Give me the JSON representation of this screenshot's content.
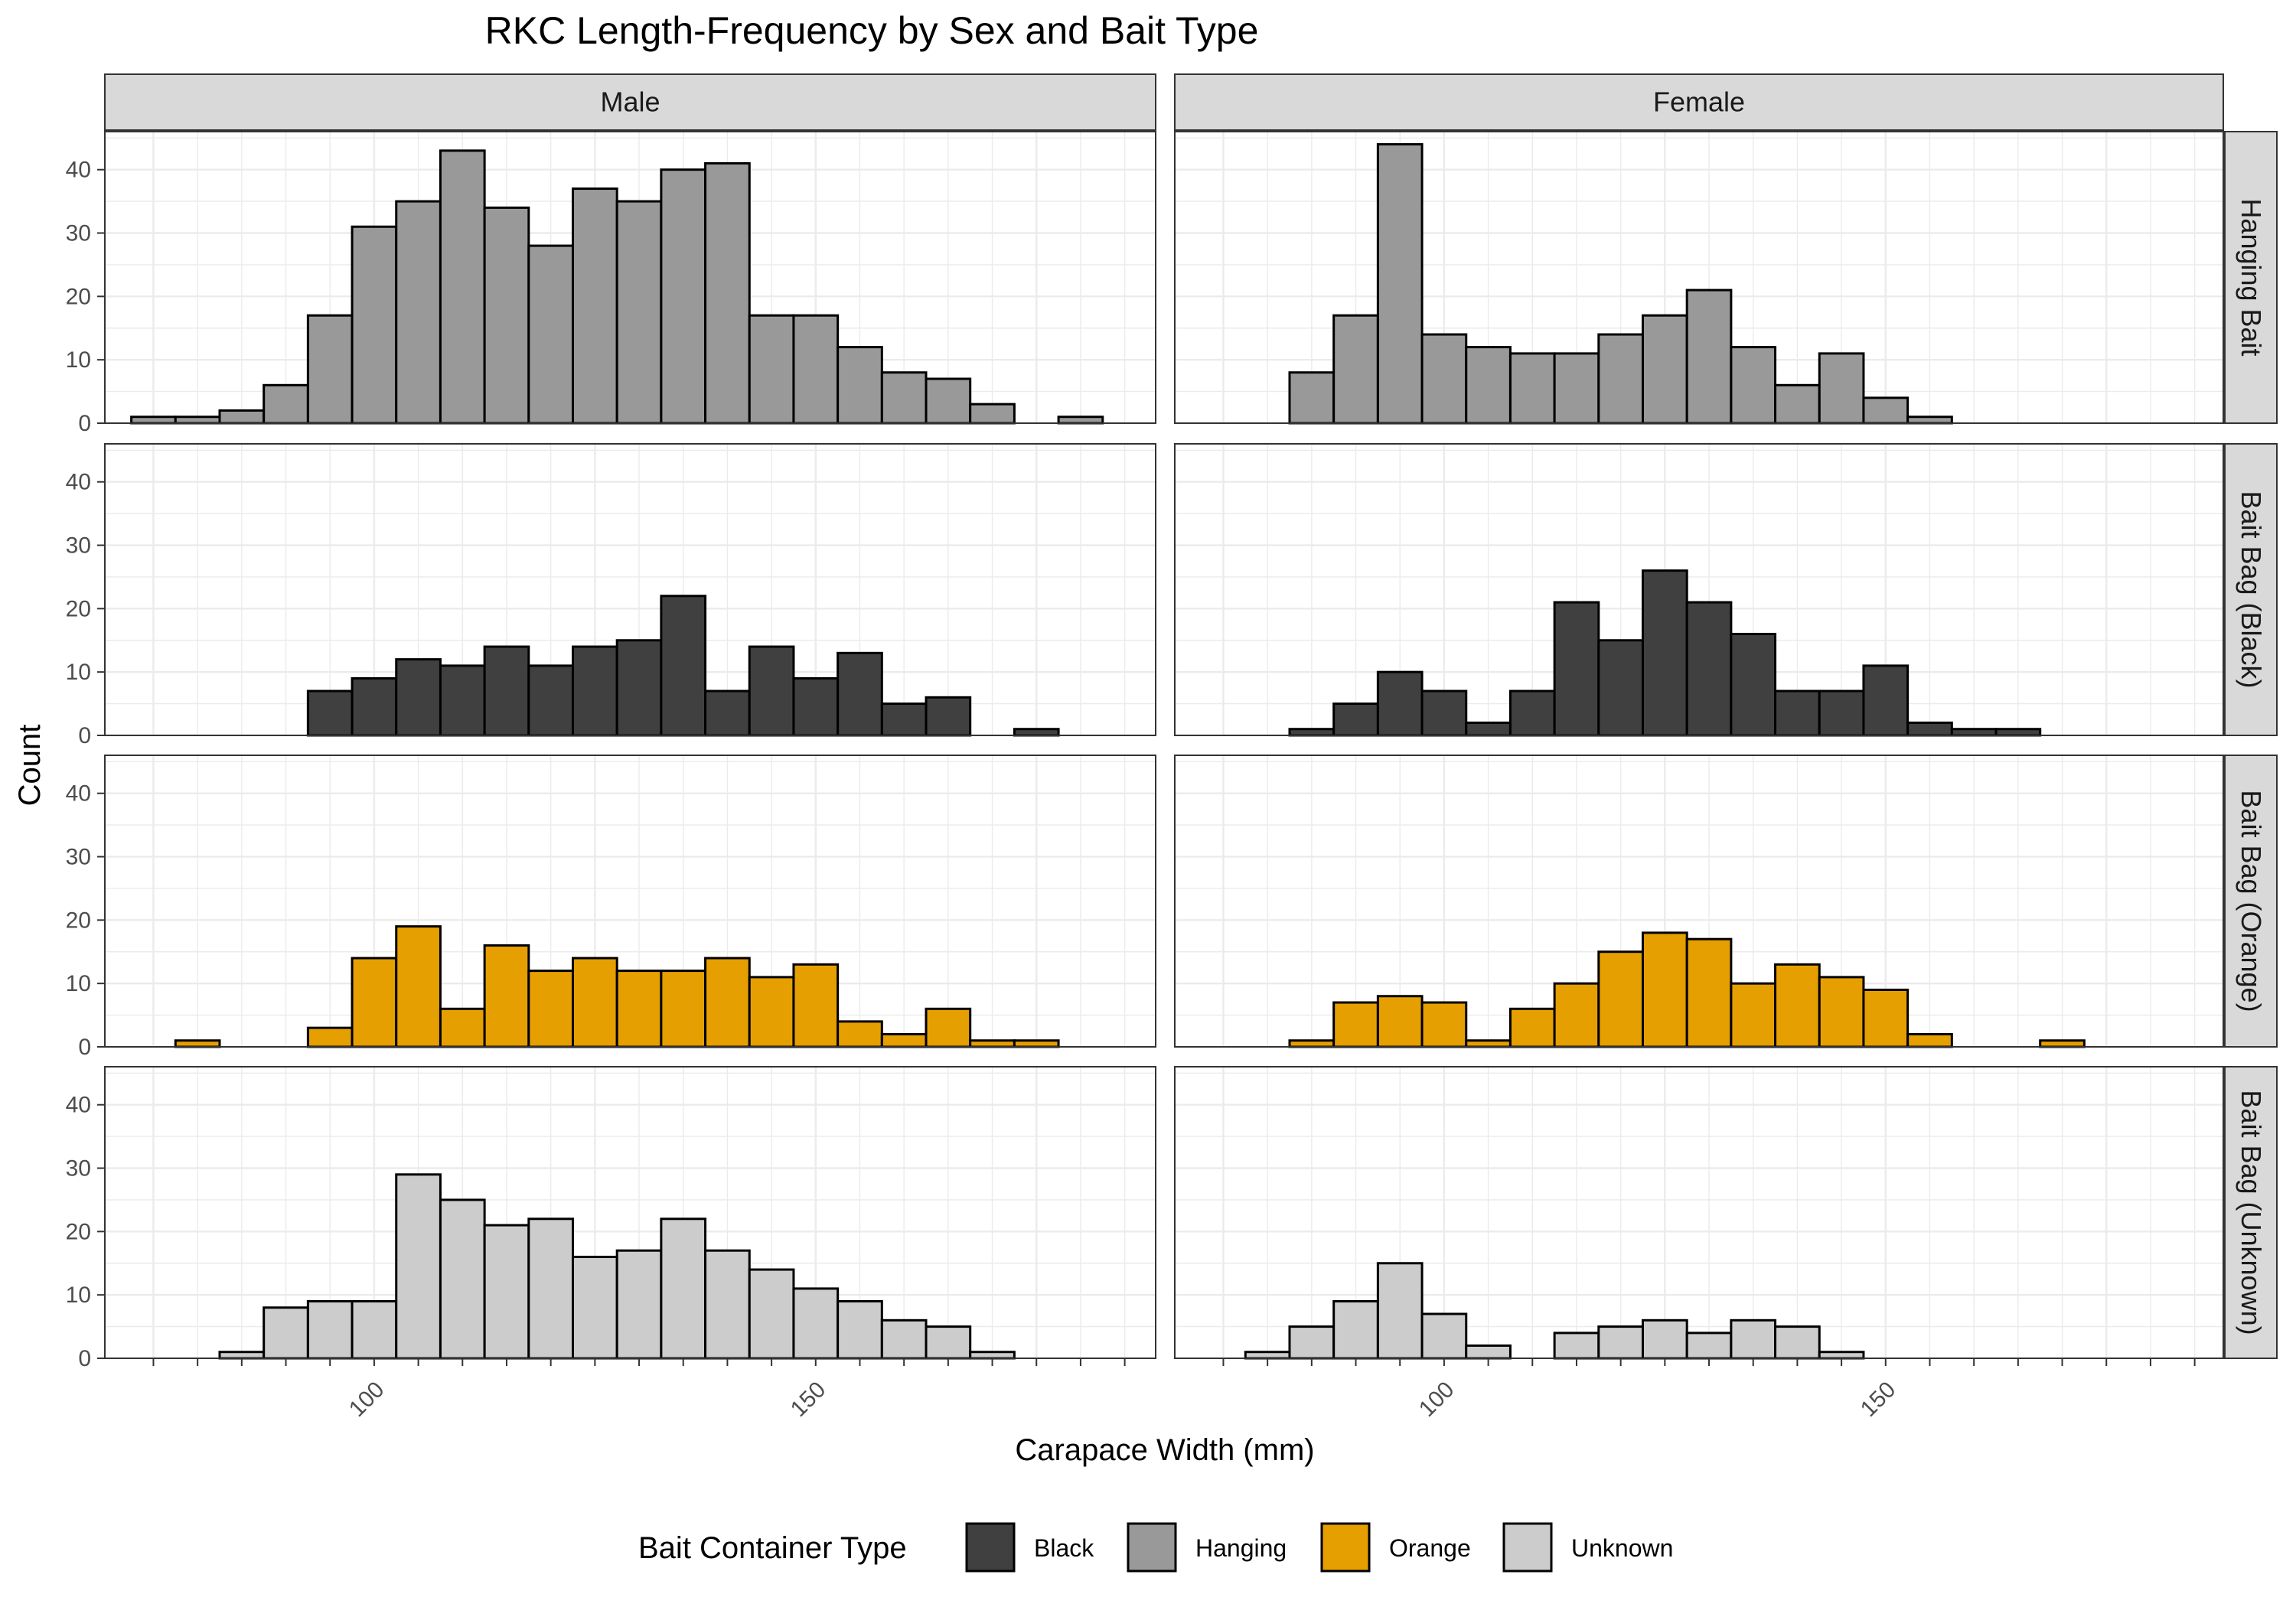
{
  "chart_data": {
    "type": "bar",
    "chart_kind": "faceted histogram",
    "title": "RKC Length-Frequency by Sex and Bait Type",
    "xlabel": "Carapace Width (mm)",
    "ylabel": "Count",
    "bin_width_mm": 5,
    "x_ticks": [
      100,
      150
    ],
    "y_ticks": [
      0,
      10,
      20,
      30,
      40
    ],
    "ylim": [
      0,
      46
    ],
    "grid": true,
    "columns": [
      "Male",
      "Female"
    ],
    "rows": [
      "Hanging Bait",
      "Bait Bag (Black)",
      "Bait Bag (Orange)",
      "Bait Bag (Unknown)"
    ],
    "legend": {
      "title": "Bait Container Type",
      "position": "bottom",
      "entries": [
        {
          "name": "Black",
          "color": "#404040"
        },
        {
          "name": "Hanging",
          "color": "#999999"
        },
        {
          "name": "Orange",
          "color": "#E69F00"
        },
        {
          "name": "Unknown",
          "color": "#CCCCCC"
        }
      ]
    },
    "panels": [
      {
        "sex": "Male",
        "bait": "Hanging Bait",
        "fill": "Hanging",
        "x": [
          75,
          80,
          85,
          90,
          95,
          100,
          105,
          110,
          115,
          120,
          125,
          130,
          135,
          140,
          145,
          150,
          155,
          160,
          165,
          170,
          175,
          180
        ],
        "y": [
          1,
          1,
          2,
          6,
          17,
          31,
          35,
          43,
          34,
          28,
          37,
          35,
          40,
          41,
          17,
          17,
          12,
          8,
          7,
          3,
          0,
          1
        ]
      },
      {
        "sex": "Female",
        "bait": "Hanging Bait",
        "fill": "Hanging",
        "x": [
          85,
          90,
          95,
          100,
          105,
          110,
          115,
          120,
          125,
          130,
          135,
          140,
          145,
          150,
          155,
          160
        ],
        "y": [
          8,
          17,
          44,
          14,
          12,
          11,
          11,
          14,
          17,
          21,
          12,
          6,
          11,
          4,
          1,
          0
        ]
      },
      {
        "sex": "Male",
        "bait": "Bait Bag (Black)",
        "fill": "Black",
        "x": [
          95,
          100,
          105,
          110,
          115,
          120,
          125,
          130,
          135,
          140,
          145,
          150,
          155,
          160,
          165,
          170,
          175
        ],
        "y": [
          7,
          9,
          12,
          11,
          14,
          11,
          14,
          15,
          22,
          7,
          14,
          9,
          13,
          5,
          6,
          0,
          1
        ]
      },
      {
        "sex": "Female",
        "bait": "Bait Bag (Black)",
        "fill": "Black",
        "x": [
          85,
          90,
          95,
          100,
          105,
          110,
          115,
          120,
          125,
          130,
          135,
          140,
          145,
          150,
          155,
          160,
          165
        ],
        "y": [
          1,
          5,
          10,
          7,
          2,
          7,
          21,
          15,
          26,
          21,
          16,
          7,
          7,
          11,
          2,
          1,
          1
        ]
      },
      {
        "sex": "Male",
        "bait": "Bait Bag (Orange)",
        "fill": "Orange",
        "x": [
          80,
          85,
          90,
          95,
          100,
          105,
          110,
          115,
          120,
          125,
          130,
          135,
          140,
          145,
          150,
          155,
          160,
          165,
          170,
          175
        ],
        "y": [
          1,
          0,
          0,
          3,
          14,
          19,
          6,
          16,
          12,
          14,
          12,
          12,
          14,
          11,
          13,
          4,
          2,
          6,
          1,
          1
        ]
      },
      {
        "sex": "Female",
        "bait": "Bait Bag (Orange)",
        "fill": "Orange",
        "x": [
          85,
          90,
          95,
          100,
          105,
          110,
          115,
          120,
          125,
          130,
          135,
          140,
          145,
          150,
          155,
          160,
          165,
          170
        ],
        "y": [
          1,
          7,
          8,
          7,
          1,
          6,
          10,
          15,
          18,
          17,
          10,
          13,
          11,
          9,
          2,
          0,
          0,
          1
        ]
      },
      {
        "sex": "Male",
        "bait": "Bait Bag (Unknown)",
        "fill": "Unknown",
        "x": [
          85,
          90,
          95,
          100,
          105,
          110,
          115,
          120,
          125,
          130,
          135,
          140,
          145,
          150,
          155,
          160,
          165,
          170
        ],
        "y": [
          1,
          8,
          9,
          9,
          29,
          25,
          21,
          22,
          16,
          17,
          22,
          17,
          14,
          11,
          9,
          6,
          5,
          1
        ]
      },
      {
        "sex": "Female",
        "bait": "Bait Bag (Unknown)",
        "fill": "Unknown",
        "x": [
          80,
          85,
          90,
          95,
          100,
          105,
          110,
          115,
          120,
          125,
          130,
          135,
          140,
          145
        ],
        "y": [
          1,
          5,
          9,
          15,
          7,
          2,
          0,
          4,
          5,
          6,
          4,
          6,
          5,
          1
        ]
      }
    ]
  }
}
